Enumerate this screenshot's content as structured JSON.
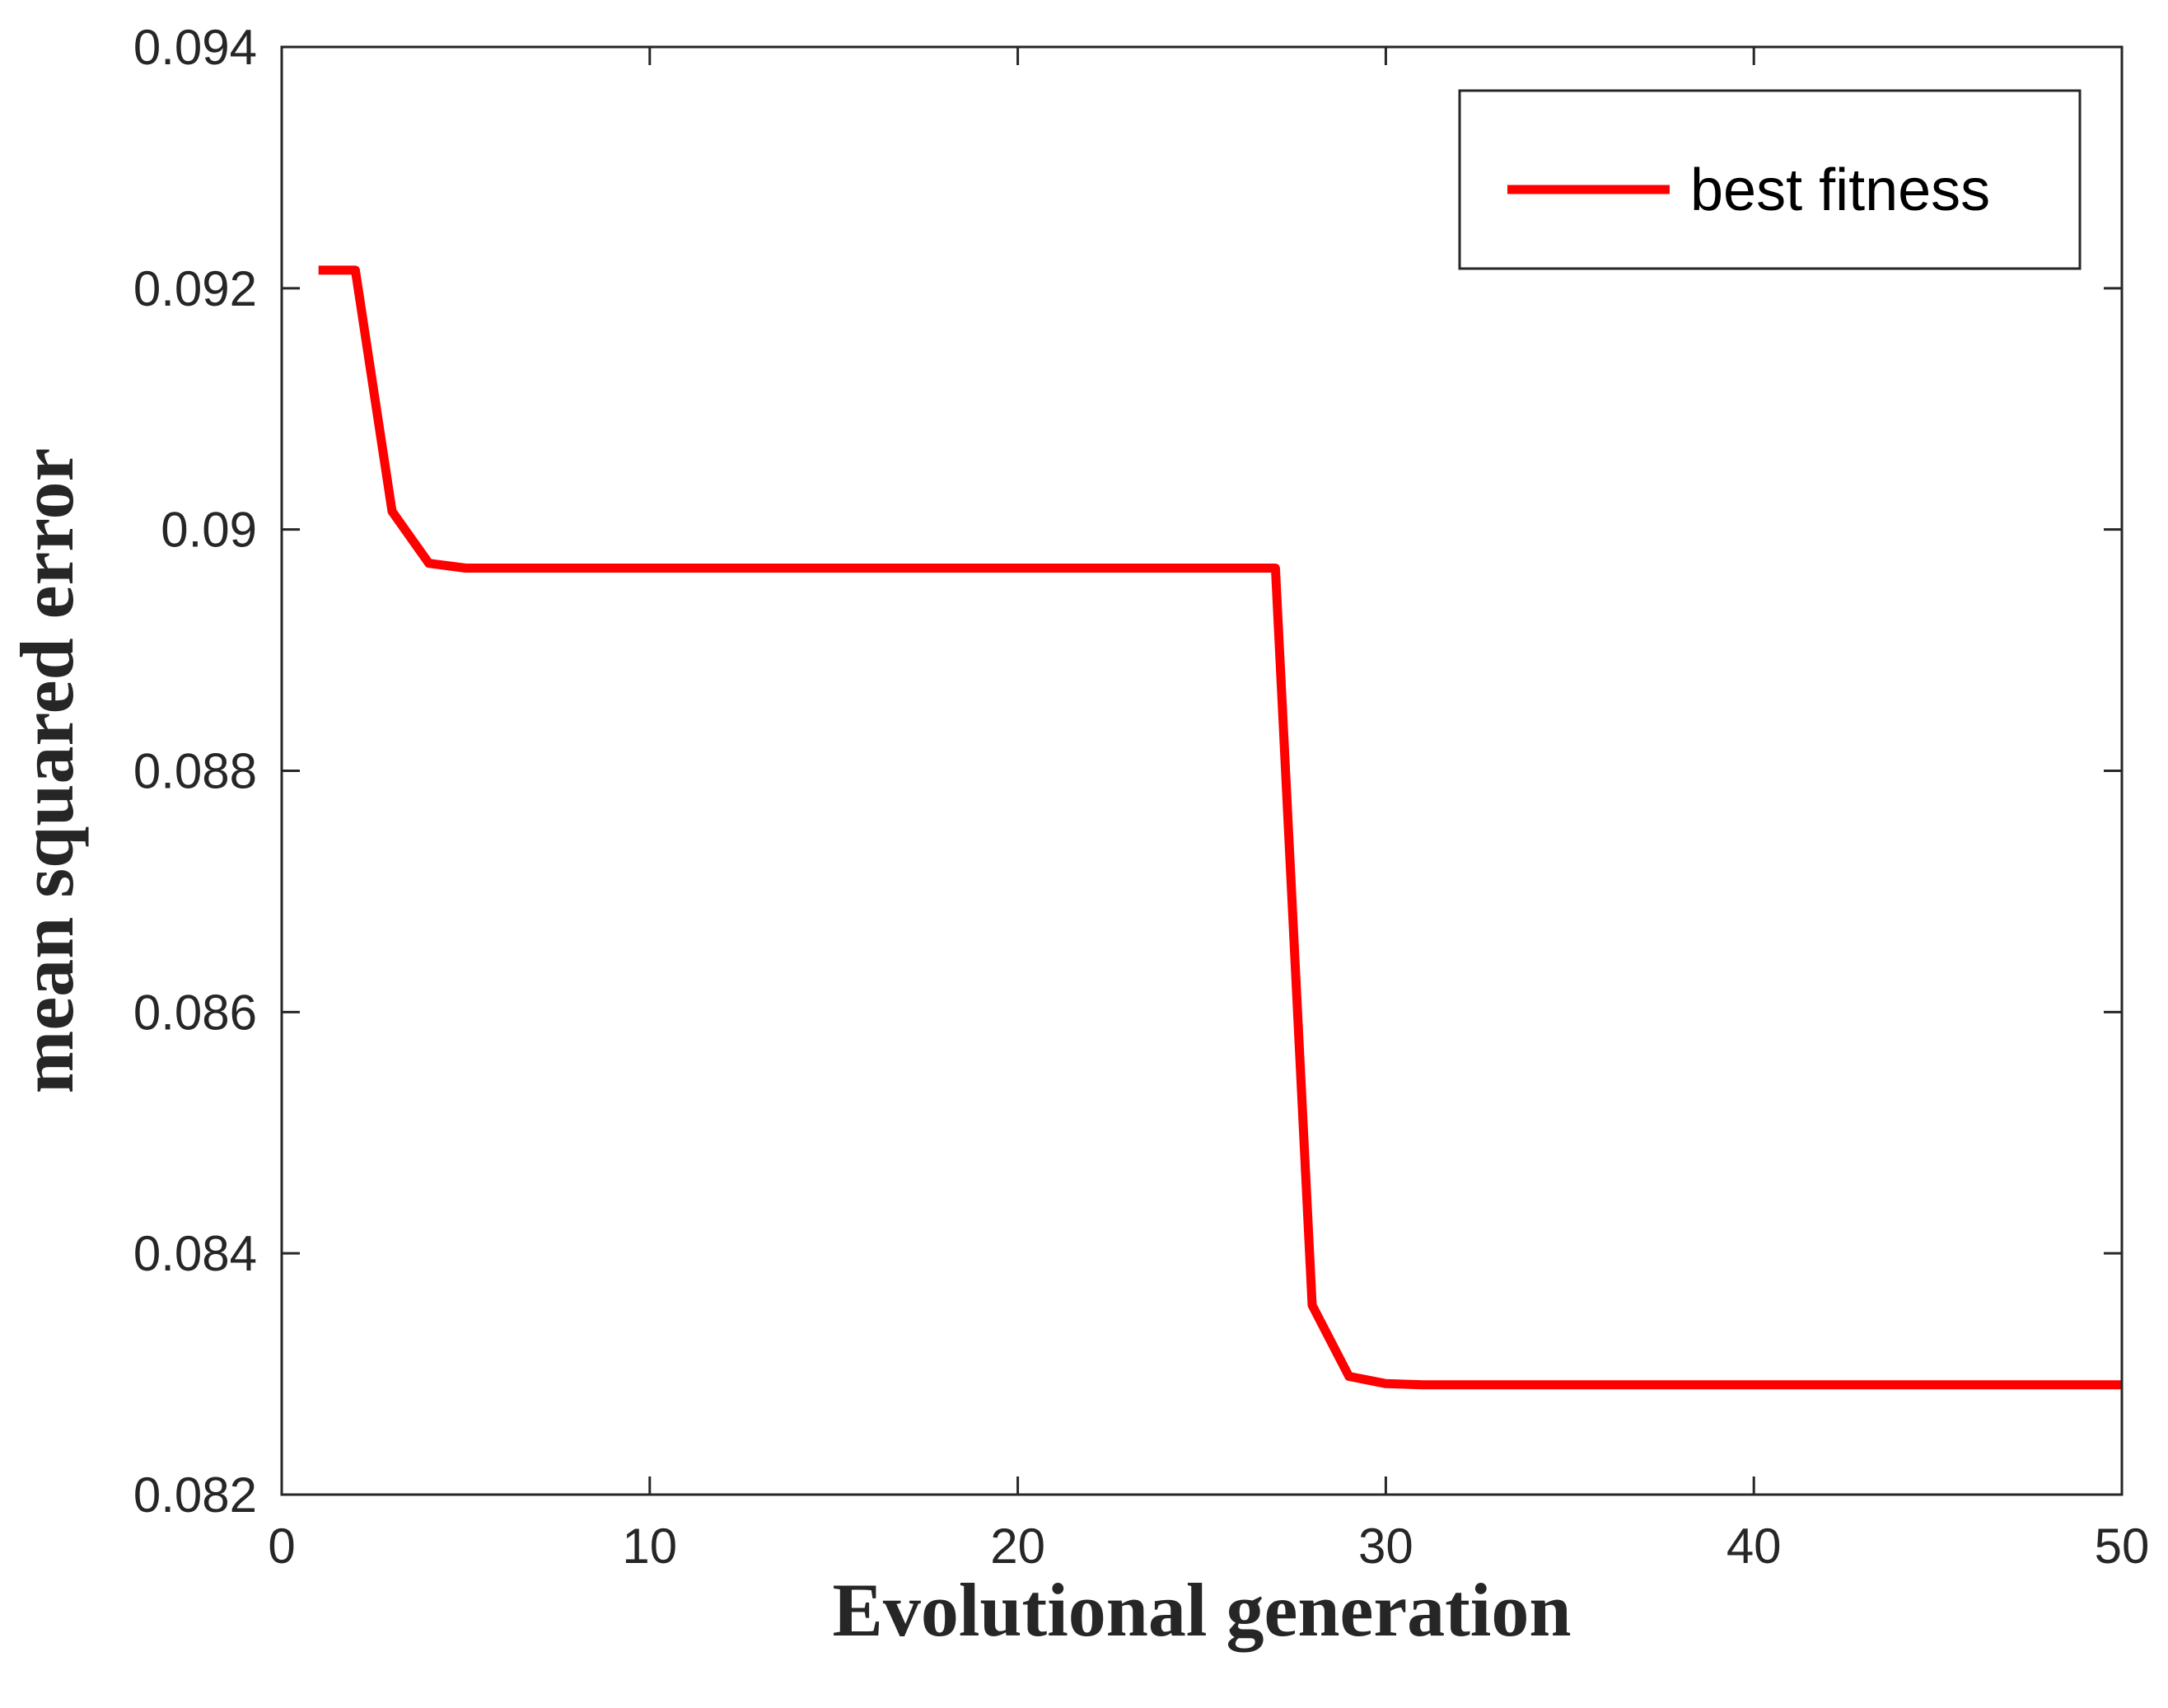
{
  "chart_data": {
    "type": "line",
    "xlabel": "Evolutional generation",
    "ylabel": "mean squared error",
    "xlim": [
      0,
      50
    ],
    "ylim": [
      0.082,
      0.094
    ],
    "grid": false,
    "legend_position": "top-right",
    "x_ticks": [
      0,
      10,
      20,
      30,
      40,
      50
    ],
    "x_tick_labels": [
      "0",
      "10",
      "20",
      "30",
      "40",
      "50"
    ],
    "y_ticks": [
      0.082,
      0.084,
      0.086,
      0.088,
      0.09,
      0.092,
      0.094
    ],
    "y_tick_labels": [
      "0.082",
      "0.084",
      "0.086",
      "0.088",
      "0.09",
      "0.092",
      "0.094"
    ],
    "series": [
      {
        "name": "best fitness",
        "color": "#ff0000",
        "x": [
          1,
          2,
          3,
          4,
          5,
          6,
          7,
          8,
          9,
          10,
          11,
          12,
          13,
          14,
          15,
          16,
          17,
          18,
          19,
          20,
          21,
          22,
          23,
          24,
          25,
          26,
          27,
          28,
          29,
          30,
          31,
          32,
          33,
          34,
          35,
          36,
          37,
          38,
          39,
          40,
          41,
          42,
          43,
          44,
          45,
          46,
          47,
          48,
          49,
          50
        ],
        "values": [
          0.09215,
          0.09215,
          0.09015,
          0.08972,
          0.08968,
          0.08968,
          0.08968,
          0.08968,
          0.08968,
          0.08968,
          0.08968,
          0.08968,
          0.08968,
          0.08968,
          0.08968,
          0.08968,
          0.08968,
          0.08968,
          0.08968,
          0.08968,
          0.08968,
          0.08968,
          0.08968,
          0.08968,
          0.08968,
          0.08968,
          0.08968,
          0.08357,
          0.08298,
          0.08292,
          0.08291,
          0.08291,
          0.08291,
          0.08291,
          0.08291,
          0.08291,
          0.08291,
          0.08291,
          0.08291,
          0.08291,
          0.08291,
          0.08291,
          0.08291,
          0.08291,
          0.08291,
          0.08291,
          0.08291,
          0.08291,
          0.08291,
          0.08291
        ]
      }
    ]
  }
}
